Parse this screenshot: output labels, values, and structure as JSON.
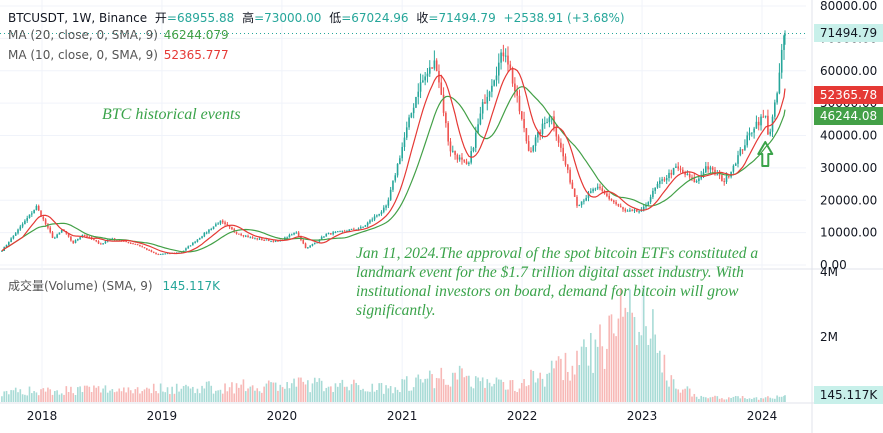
{
  "legend": {
    "symbol": "BTCUSDT, 1W, Binance",
    "open_label": "开",
    "open": "=68955.88",
    "high_label": "高",
    "high": "=73000.00",
    "low_label": "低",
    "low": "=67024.96",
    "close_label": "收",
    "close": "=71494.79",
    "change": "+2538.91 (+3.68%)",
    "ma20_label": "MA (20, close, 0, SMA, 9)",
    "ma20_value": "46244.079",
    "ma10_label": "MA (10, close, 0, SMA, 9)",
    "ma10_value": "52365.777",
    "volume_label": "成交量(Volume) (SMA, 9)",
    "volume_value": "145.117K"
  },
  "annotations": {
    "title": "BTC historical events",
    "body": "Jan 11, 2024.The approval of the spot bitcoin ETFs constituted a landmark event for the $1.7 trillion digital asset industry. With institutional investors on board, demand for bitcoin will grow significantly."
  },
  "price_tags": {
    "close": "71494.79",
    "ma10": "52365.78",
    "ma20": "46244.08",
    "volume": "145.117K"
  },
  "colors": {
    "up": "#26a69a",
    "down": "#ef5350",
    "ma10": "#e53935",
    "ma20": "#43a047",
    "note": "#3aa34a",
    "volume_up": "#a8dbd6",
    "volume_down": "#f7b8b6",
    "close_tag": "#c8f0ea",
    "ma10_tag": "#e53935",
    "ma20_tag": "#43a047"
  },
  "chart_data": {
    "type": "candlestick",
    "title": "BTCUSDT, 1W, Binance",
    "price_axis": {
      "ticks": [
        "80000.00",
        "70000.00",
        "60000.00",
        "50000.00",
        "40000.00",
        "30000.00",
        "20000.00",
        "10000.00",
        "0.00"
      ],
      "range": [
        0,
        80000
      ]
    },
    "volume_axis": {
      "ticks": [
        "4M",
        "2M"
      ],
      "range": [
        0,
        4000000
      ]
    },
    "x_ticks": [
      "2018",
      "2019",
      "2020",
      "2021",
      "2022",
      "2023",
      "2024"
    ],
    "arrow_marker": {
      "date": "2024-01-11",
      "value": 38000
    },
    "price_keypoints": [
      {
        "date": "2017-09-01",
        "value": 4500
      },
      {
        "date": "2017-12-15",
        "value": 18000
      },
      {
        "date": "2018-02-05",
        "value": 8000
      },
      {
        "date": "2018-03-05",
        "value": 11000
      },
      {
        "date": "2018-04-05",
        "value": 6800
      },
      {
        "date": "2018-05-05",
        "value": 9500
      },
      {
        "date": "2018-07-01",
        "value": 6300
      },
      {
        "date": "2018-07-25",
        "value": 8200
      },
      {
        "date": "2018-10-15",
        "value": 6400
      },
      {
        "date": "2018-12-15",
        "value": 3300
      },
      {
        "date": "2019-03-01",
        "value": 3900
      },
      {
        "date": "2019-06-26",
        "value": 13500
      },
      {
        "date": "2019-08-15",
        "value": 10000
      },
      {
        "date": "2019-10-01",
        "value": 8300
      },
      {
        "date": "2019-12-20",
        "value": 7200
      },
      {
        "date": "2020-02-15",
        "value": 10200
      },
      {
        "date": "2020-03-15",
        "value": 5000
      },
      {
        "date": "2020-05-15",
        "value": 9500
      },
      {
        "date": "2020-09-01",
        "value": 11500
      },
      {
        "date": "2020-11-15",
        "value": 18000
      },
      {
        "date": "2021-01-10",
        "value": 40000
      },
      {
        "date": "2021-02-20",
        "value": 55000
      },
      {
        "date": "2021-04-14",
        "value": 63000
      },
      {
        "date": "2021-05-25",
        "value": 36000
      },
      {
        "date": "2021-07-20",
        "value": 30000
      },
      {
        "date": "2021-09-05",
        "value": 50000
      },
      {
        "date": "2021-11-10",
        "value": 67000
      },
      {
        "date": "2022-01-22",
        "value": 35000
      },
      {
        "date": "2022-03-28",
        "value": 47000
      },
      {
        "date": "2022-06-18",
        "value": 18500
      },
      {
        "date": "2022-08-15",
        "value": 24000
      },
      {
        "date": "2022-11-10",
        "value": 16500
      },
      {
        "date": "2023-01-01",
        "value": 16600
      },
      {
        "date": "2023-02-15",
        "value": 24500
      },
      {
        "date": "2023-04-15",
        "value": 30000
      },
      {
        "date": "2023-06-15",
        "value": 25500
      },
      {
        "date": "2023-07-15",
        "value": 30500
      },
      {
        "date": "2023-09-10",
        "value": 25800
      },
      {
        "date": "2023-10-25",
        "value": 34500
      },
      {
        "date": "2023-12-10",
        "value": 43500
      },
      {
        "date": "2024-01-11",
        "value": 46000
      },
      {
        "date": "2024-01-22",
        "value": 39500
      },
      {
        "date": "2024-02-15",
        "value": 52000
      },
      {
        "date": "2024-03-04",
        "value": 68000
      },
      {
        "date": "2024-03-11",
        "value": 71494.79
      }
    ],
    "volume_keypoints": [
      {
        "date": "2017-09-01",
        "value": 0.3
      },
      {
        "date": "2017-12-15",
        "value": 0.35
      },
      {
        "date": "2019-06-15",
        "value": 0.45
      },
      {
        "date": "2020-03-15",
        "value": 0.55
      },
      {
        "date": "2020-11-15",
        "value": 0.45
      },
      {
        "date": "2021-05-20",
        "value": 0.85
      },
      {
        "date": "2021-12-01",
        "value": 0.5
      },
      {
        "date": "2022-06-15",
        "value": 1.2
      },
      {
        "date": "2022-09-15",
        "value": 1.8
      },
      {
        "date": "2022-11-10",
        "value": 3.0
      },
      {
        "date": "2023-01-15",
        "value": 2.5
      },
      {
        "date": "2023-03-20",
        "value": 0.8
      },
      {
        "date": "2023-06-15",
        "value": 0.15
      },
      {
        "date": "2023-12-15",
        "value": 0.12
      },
      {
        "date": "2024-03-11",
        "value": 0.15
      }
    ]
  }
}
